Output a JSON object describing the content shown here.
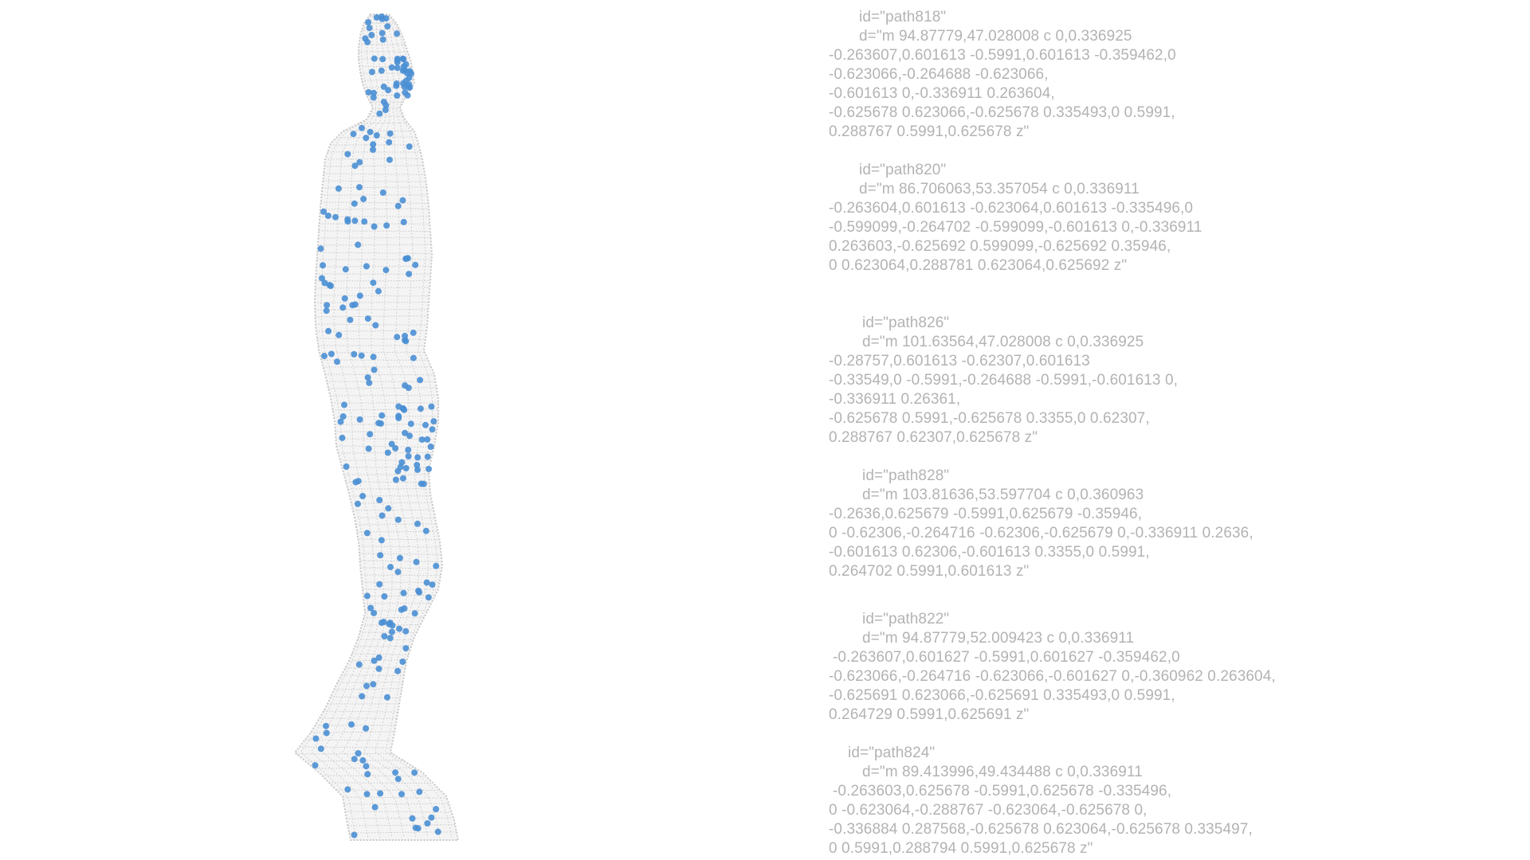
{
  "figure": {
    "icon": "human-point-cloud-walking-figure",
    "mesh_color": "#c8c8c8",
    "point_color": "#4a8fd4"
  },
  "blocks": [
    {
      "lines": [
        "id=\"path818\"",
        "d=\"m 94.87779,47.028008 c 0,0.336925",
        "-0.263607,0.601613 -0.5991,0.601613 -0.359462,0",
        "-0.623066,-0.264688 -0.623066,",
        "-0.601613 0,-0.336911 0.263604,",
        "-0.625678 0.623066,-0.625678 0.335493,0 0.5991,",
        "0.288767 0.5991,0.625678 z\""
      ]
    },
    {
      "lines": [
        "id=\"path820\"",
        "d=\"m 86.706063,53.357054 c 0,0.336911",
        "-0.263604,0.601613 -0.623064,0.601613 -0.335496,0",
        "-0.599099,-0.264702 -0.599099,-0.601613 0,-0.336911",
        "0.263603,-0.625692 0.599099,-0.625692 0.35946,",
        "0 0.623064,0.288781 0.623064,0.625692 z\""
      ]
    },
    {
      "lines": [
        "id=\"path826\"",
        "d=\"m 101.63564,47.028008 c 0,0.336925",
        "-0.28757,0.601613 -0.62307,0.601613",
        "-0.33549,0 -0.5991,-0.264688 -0.5991,-0.601613 0,",
        "-0.336911 0.26361,",
        "-0.625678 0.5991,-0.625678 0.3355,0 0.62307,",
        "0.288767 0.62307,0.625678 z\""
      ]
    },
    {
      "lines": [
        "id=\"path828\"",
        "d=\"m 103.81636,53.597704 c 0,0.360963",
        "-0.2636,0.625679 -0.5991,0.625679 -0.35946,",
        "0 -0.62306,-0.264716 -0.62306,-0.625679 0,-0.336911 0.2636,",
        "-0.601613 0.62306,-0.601613 0.3355,0 0.5991,",
        "0.264702 0.5991,0.601613 z\""
      ]
    },
    {
      "lines": [
        "id=\"path822\"",
        "d=\"m 94.87779,52.009423 c 0,0.336911",
        "-0.263607,0.601627 -0.5991,0.601627 -0.359462,0",
        "-0.623066,-0.264716 -0.623066,-0.601627 0,-0.360962 0.263604,",
        "-0.625691 0.623066,-0.625691 0.335493,0 0.5991,",
        "0.264729 0.5991,0.625691 z\""
      ]
    },
    {
      "lines": [
        "id=\"path824\"",
        "d=\"m 89.413996,49.434488 c 0,0.336911",
        "-0.263603,0.625678 -0.5991,0.625678 -0.335496,",
        "0 -0.623064,-0.288767 -0.623064,-0.625678 0,",
        "-0.336884 0.287568,-0.625678 0.623064,-0.625678 0.335497,",
        "0 0.5991,0.288794 0.5991,0.625678 z\""
      ]
    }
  ]
}
